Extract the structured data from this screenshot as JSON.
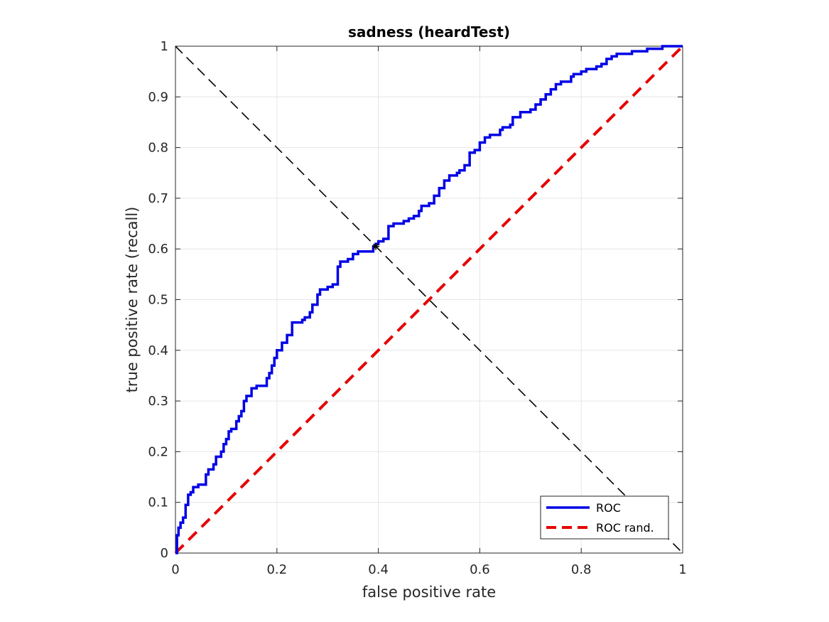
{
  "chart_data": {
    "type": "line",
    "title": "sadness (heardTest)",
    "xlabel": "false positive rate",
    "ylabel": "true positive rate (recall)",
    "xlim": [
      0,
      1
    ],
    "ylim": [
      0,
      1
    ],
    "xticks": [
      "0",
      "0.2",
      "0.4",
      "0.6",
      "0.8",
      "1"
    ],
    "xtick_values": [
      0,
      0.2,
      0.4,
      0.6,
      0.8,
      1
    ],
    "yticks": [
      "0",
      "0.1",
      "0.2",
      "0.3",
      "0.4",
      "0.5",
      "0.6",
      "0.7",
      "0.8",
      "0.9",
      "1"
    ],
    "ytick_values": [
      0,
      0.1,
      0.2,
      0.3,
      0.4,
      0.5,
      0.6,
      0.7,
      0.8,
      0.9,
      1
    ],
    "grid": true,
    "legend_position": "bottom-right",
    "series": [
      {
        "name": "ROC",
        "color": "#0000e6",
        "style": "solid",
        "x": [
          0,
          0.003,
          0.006,
          0.01,
          0.015,
          0.02,
          0.025,
          0.03,
          0.035,
          0.045,
          0.06,
          0.065,
          0.075,
          0.08,
          0.09,
          0.095,
          0.1,
          0.105,
          0.11,
          0.12,
          0.125,
          0.13,
          0.135,
          0.14,
          0.15,
          0.16,
          0.165,
          0.18,
          0.185,
          0.19,
          0.195,
          0.2,
          0.21,
          0.22,
          0.23,
          0.25,
          0.255,
          0.265,
          0.27,
          0.28,
          0.285,
          0.3,
          0.31,
          0.32,
          0.325,
          0.34,
          0.35,
          0.36,
          0.38,
          0.39,
          0.395,
          0.4,
          0.41,
          0.42,
          0.43,
          0.45,
          0.46,
          0.47,
          0.48,
          0.485,
          0.5,
          0.51,
          0.52,
          0.53,
          0.54,
          0.555,
          0.56,
          0.57,
          0.58,
          0.59,
          0.6,
          0.61,
          0.62,
          0.64,
          0.645,
          0.66,
          0.665,
          0.68,
          0.7,
          0.71,
          0.72,
          0.73,
          0.74,
          0.75,
          0.76,
          0.78,
          0.785,
          0.8,
          0.81,
          0.82,
          0.83,
          0.84,
          0.85,
          0.86,
          0.87,
          0.88,
          0.9,
          0.91,
          0.93,
          0.94,
          0.96,
          0.97,
          0.98,
          1.0
        ],
        "y": [
          0,
          0.035,
          0.05,
          0.06,
          0.07,
          0.095,
          0.115,
          0.12,
          0.13,
          0.135,
          0.155,
          0.165,
          0.175,
          0.19,
          0.2,
          0.215,
          0.225,
          0.24,
          0.245,
          0.26,
          0.27,
          0.28,
          0.3,
          0.31,
          0.325,
          0.33,
          0.33,
          0.345,
          0.355,
          0.37,
          0.385,
          0.4,
          0.415,
          0.43,
          0.455,
          0.46,
          0.465,
          0.475,
          0.49,
          0.51,
          0.52,
          0.525,
          0.53,
          0.565,
          0.575,
          0.58,
          0.59,
          0.595,
          0.595,
          0.605,
          0.61,
          0.615,
          0.62,
          0.645,
          0.65,
          0.655,
          0.66,
          0.665,
          0.675,
          0.685,
          0.69,
          0.705,
          0.72,
          0.735,
          0.745,
          0.75,
          0.755,
          0.765,
          0.79,
          0.795,
          0.81,
          0.82,
          0.825,
          0.835,
          0.84,
          0.845,
          0.86,
          0.87,
          0.875,
          0.885,
          0.895,
          0.905,
          0.915,
          0.925,
          0.93,
          0.94,
          0.945,
          0.95,
          0.955,
          0.955,
          0.96,
          0.965,
          0.975,
          0.98,
          0.985,
          0.985,
          0.99,
          0.99,
          0.995,
          0.995,
          1.0,
          1.0,
          1.0,
          1.0
        ]
      },
      {
        "name": "ROC rand.",
        "color": "#e60000",
        "style": "dashed",
        "x": [
          0,
          1
        ],
        "y": [
          0,
          1
        ]
      }
    ],
    "reference_line": {
      "color": "#000000",
      "style": "dashed",
      "x": [
        0,
        1
      ],
      "y": [
        1,
        0
      ]
    },
    "marker": {
      "x": 0.395,
      "y": 0.605,
      "color": "#000000",
      "symbol": "star"
    }
  }
}
